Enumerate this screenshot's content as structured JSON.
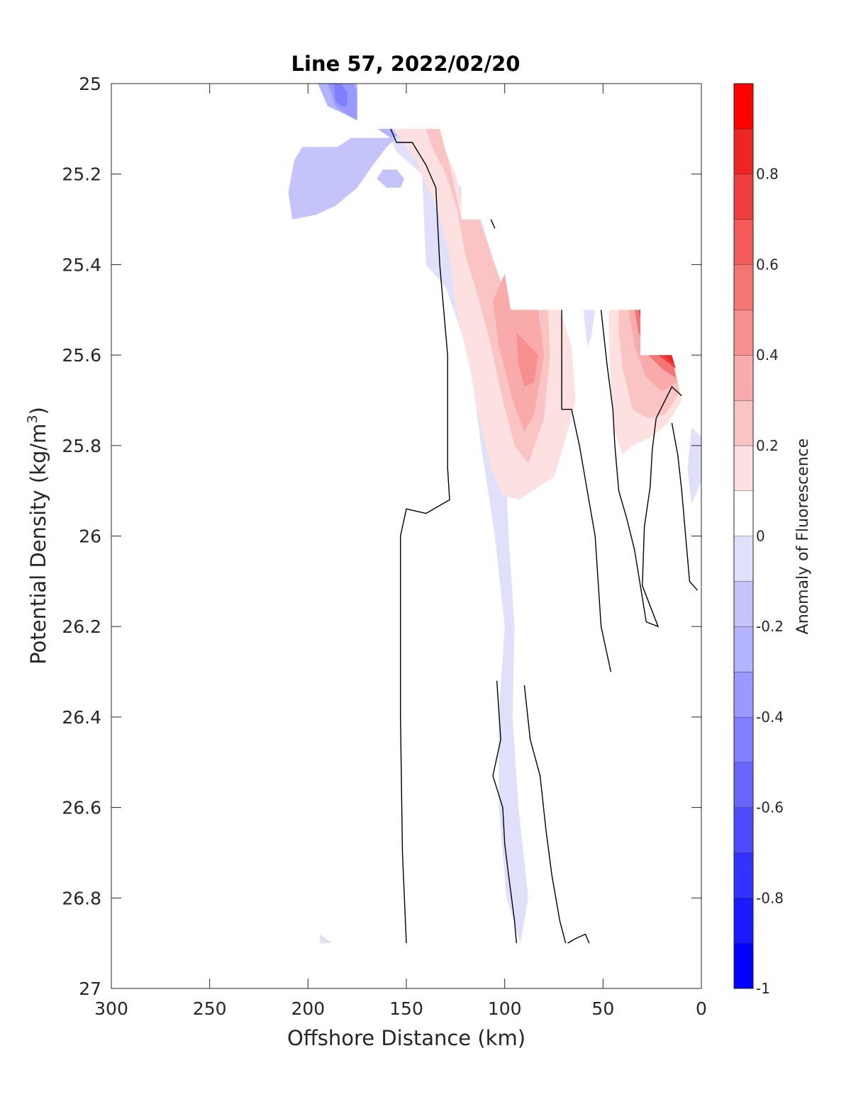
{
  "chart_data": {
    "type": "contour",
    "title": "Line 57, 2022/02/20",
    "xlabel": "Offshore Distance (km)",
    "ylabel": "Potential Density (kg/m",
    "ylabel_sup": "3",
    "ylabel_end": ")",
    "xlim": [
      300,
      0
    ],
    "x_reversed": true,
    "ylim": [
      25,
      27
    ],
    "y_reversed": true,
    "xticks": [
      "300",
      "250",
      "200",
      "150",
      "100",
      "50",
      "0"
    ],
    "yticks": [
      "25",
      "25.2",
      "25.4",
      "25.6",
      "25.8",
      "26",
      "26.2",
      "26.4",
      "26.6",
      "26.8",
      "27"
    ],
    "colorbar": {
      "label": "Anomaly of Fluorescence",
      "limits": [
        -1,
        1
      ],
      "ticks": [
        "-1",
        "-0.8",
        "-0.6",
        "-0.4",
        "-0.2",
        "0",
        "0.2",
        "0.4",
        "0.6",
        "0.8"
      ],
      "levels": [
        -1,
        -0.9,
        -0.8,
        -0.7,
        -0.6,
        -0.5,
        -0.4,
        -0.3,
        -0.2,
        -0.1,
        0.1,
        0.2,
        0.3,
        0.4,
        0.5,
        0.6,
        0.7,
        0.8,
        0.9,
        1.0
      ],
      "colors": [
        "#0000ff",
        "#1a1aff",
        "#3333ff",
        "#4d4dff",
        "#6666ff",
        "#8080ff",
        "#9999ff",
        "#b3b3ff",
        "#c4c4fa",
        "#e0e0fb",
        "#ffffff",
        "#fde0e0",
        "#fbc4c4",
        "#f9aaaa",
        "#f78f8f",
        "#f57575",
        "#f35a5a",
        "#f13f3f",
        "#ef2424",
        "#ff0000"
      ]
    },
    "regions": [
      {
        "level": -0.1,
        "color": "#e0e0fb",
        "points": [
          [
            285,
            25.0
          ],
          [
            185,
            25.0
          ],
          [
            173,
            25.1
          ],
          [
            160,
            25.1
          ],
          [
            155,
            25.15
          ],
          [
            142,
            25.2
          ],
          [
            140,
            25.4
          ],
          [
            130,
            25.45
          ],
          [
            118,
            25.6
          ],
          [
            112,
            25.8
          ],
          [
            105,
            26.0
          ],
          [
            100,
            26.2
          ],
          [
            103,
            26.4
          ],
          [
            103,
            26.6
          ],
          [
            99,
            26.8
          ],
          [
            92,
            26.9
          ],
          [
            88,
            26.8
          ],
          [
            93,
            26.6
          ],
          [
            96,
            26.4
          ],
          [
            95,
            26.2
          ],
          [
            98,
            26.0
          ],
          [
            100,
            25.8
          ],
          [
            103,
            25.6
          ],
          [
            105,
            25.4
          ],
          [
            112,
            25.3
          ],
          [
            118,
            25.25
          ],
          [
            124,
            25.22
          ],
          [
            130,
            25.2
          ],
          [
            137,
            25.15
          ],
          [
            140,
            25.1
          ],
          [
            150,
            25.1
          ],
          [
            159,
            25.1
          ],
          [
            162,
            25.05
          ],
          [
            167,
            25.0
          ]
        ]
      },
      {
        "level": -0.2,
        "color": "#c4c4fa",
        "points": [
          [
            285,
            25.0
          ],
          [
            195,
            25.0
          ],
          [
            155,
            25.0
          ],
          [
            152,
            25.05
          ],
          [
            153,
            25.12
          ],
          [
            160,
            25.12
          ],
          [
            178,
            25.12
          ],
          [
            185,
            25.14
          ],
          [
            203,
            25.14
          ],
          [
            207,
            25.17
          ],
          [
            210,
            25.24
          ],
          [
            208,
            25.3
          ],
          [
            196,
            25.29
          ],
          [
            186,
            25.27
          ],
          [
            175,
            25.23
          ],
          [
            167,
            25.18
          ],
          [
            160,
            25.14
          ],
          [
            150,
            25.1
          ],
          [
            145,
            25.05
          ],
          [
            140,
            25.02
          ],
          [
            130,
            25.0
          ]
        ]
      },
      {
        "level": -0.3,
        "color": "#b3b3ff",
        "points": [
          [
            230,
            25.0
          ],
          [
            195,
            25.0
          ],
          [
            190,
            25.05
          ],
          [
            180,
            25.07
          ],
          [
            168,
            25.09
          ],
          [
            158,
            25.12
          ],
          [
            150,
            25.11
          ],
          [
            145,
            25.07
          ],
          [
            142,
            25.05
          ],
          [
            143,
            25.0
          ]
        ]
      },
      {
        "level": -0.4,
        "color": "#9999ff",
        "points": [
          [
            205,
            25.0
          ],
          [
            190,
            25.0
          ],
          [
            186,
            25.05
          ],
          [
            180,
            25.07
          ],
          [
            171,
            25.09
          ],
          [
            165,
            25.08
          ],
          [
            167,
            25.04
          ],
          [
            173,
            25.03
          ],
          [
            177,
            25.0
          ]
        ]
      },
      {
        "level": -0.5,
        "color": "#8080ff",
        "points": [
          [
            195,
            25.0
          ],
          [
            187,
            25.0
          ],
          [
            186,
            25.04
          ],
          [
            183,
            25.05
          ],
          [
            180,
            25.05
          ],
          [
            180,
            25.02
          ],
          [
            183,
            25.0
          ]
        ]
      }
    ],
    "negative_spots": [
      {
        "level": -0.2,
        "color": "#c4c4fa",
        "points": [
          [
            162,
            25.19
          ],
          [
            155,
            25.19
          ],
          [
            151,
            25.21
          ],
          [
            153,
            25.23
          ],
          [
            160,
            25.23
          ],
          [
            165,
            25.21
          ]
        ]
      },
      {
        "level": -0.1,
        "color": "#e0e0fb",
        "points": [
          [
            60,
            25.5
          ],
          [
            54,
            25.5
          ],
          [
            56,
            25.56
          ],
          [
            58,
            25.58
          ]
        ]
      },
      {
        "level": -0.1,
        "color": "#e0e0fb",
        "points": [
          [
            5,
            25.76
          ],
          [
            0,
            25.78
          ],
          [
            0,
            25.88
          ],
          [
            5,
            25.93
          ],
          [
            7,
            25.85
          ]
        ]
      },
      {
        "level": -0.1,
        "color": "#e0e0fb",
        "points": [
          [
            194,
            26.88
          ],
          [
            188,
            26.9
          ],
          [
            194,
            26.9
          ]
        ]
      }
    ],
    "positive_regions": [
      {
        "level": 0.1,
        "color": "#fde0e0",
        "points": [
          [
            157,
            25.1
          ],
          [
            135,
            25.1
          ],
          [
            125,
            25.2
          ],
          [
            120,
            25.3
          ],
          [
            113,
            25.3
          ],
          [
            106,
            25.4
          ],
          [
            97,
            25.5
          ],
          [
            72,
            25.5
          ],
          [
            66,
            25.58
          ],
          [
            64,
            25.7
          ],
          [
            70,
            25.8
          ],
          [
            75,
            25.87
          ],
          [
            93,
            25.92
          ],
          [
            101,
            25.91
          ],
          [
            107,
            25.85
          ],
          [
            113,
            25.74
          ],
          [
            118,
            25.62
          ],
          [
            125,
            25.49
          ],
          [
            128,
            25.38
          ],
          [
            134,
            25.28
          ],
          [
            140,
            25.22
          ],
          [
            145,
            25.17
          ]
        ]
      },
      {
        "level": 0.1,
        "color": "#fde0e0",
        "points": [
          [
            47,
            25.5
          ],
          [
            32,
            25.5
          ],
          [
            15,
            25.6
          ],
          [
            10,
            25.7
          ],
          [
            17,
            25.75
          ],
          [
            25,
            25.78
          ],
          [
            35,
            25.8
          ],
          [
            40,
            25.82
          ],
          [
            44,
            25.77
          ],
          [
            46,
            25.67
          ],
          [
            47,
            25.58
          ]
        ]
      },
      {
        "level": 0.2,
        "color": "#fbc4c4",
        "points": [
          [
            140,
            25.1
          ],
          [
            133,
            25.1
          ],
          [
            128,
            25.18
          ],
          [
            122,
            25.3
          ],
          [
            113,
            25.3
          ],
          [
            97,
            25.5
          ],
          [
            78,
            25.5
          ],
          [
            77,
            25.6
          ],
          [
            80,
            25.74
          ],
          [
            88,
            25.84
          ],
          [
            95,
            25.8
          ],
          [
            101,
            25.7
          ],
          [
            108,
            25.56
          ],
          [
            115,
            25.45
          ],
          [
            120,
            25.38
          ],
          [
            124,
            25.28
          ],
          [
            130,
            25.2
          ],
          [
            137,
            25.14
          ]
        ]
      },
      {
        "level": 0.2,
        "color": "#fbc4c4",
        "points": [
          [
            42,
            25.5
          ],
          [
            32,
            25.5
          ],
          [
            15,
            25.6
          ],
          [
            11,
            25.68
          ],
          [
            18,
            25.73
          ],
          [
            27,
            25.74
          ],
          [
            35,
            25.72
          ],
          [
            40,
            25.63
          ],
          [
            42,
            25.55
          ]
        ]
      },
      {
        "level": 0.3,
        "color": "#f9aaaa",
        "points": [
          [
            100,
            25.42
          ],
          [
            97,
            25.5
          ],
          [
            83,
            25.5
          ],
          [
            80,
            25.6
          ],
          [
            85,
            25.73
          ],
          [
            90,
            25.77
          ],
          [
            96,
            25.7
          ],
          [
            103,
            25.58
          ],
          [
            106,
            25.48
          ]
        ]
      },
      {
        "level": 0.3,
        "color": "#f9aaaa",
        "points": [
          [
            37,
            25.5
          ],
          [
            32,
            25.5
          ],
          [
            15,
            25.6
          ],
          [
            12,
            25.66
          ],
          [
            20,
            25.68
          ],
          [
            28,
            25.65
          ],
          [
            34,
            25.58
          ]
        ]
      },
      {
        "level": 0.4,
        "color": "#f78f8f",
        "points": [
          [
            94,
            25.55
          ],
          [
            83,
            25.6
          ],
          [
            85,
            25.66
          ],
          [
            90,
            25.67
          ],
          [
            93,
            25.62
          ]
        ]
      },
      {
        "level": 0.5,
        "color": "#f57575",
        "points": [
          [
            34,
            25.5
          ],
          [
            30,
            25.5
          ],
          [
            15,
            25.6
          ],
          [
            13,
            25.65
          ],
          [
            20,
            25.63
          ],
          [
            27,
            25.6
          ],
          [
            32,
            25.55
          ]
        ]
      },
      {
        "level": 0.7,
        "color": "#f13f3f",
        "points": [
          [
            32,
            25.5
          ],
          [
            30,
            25.5
          ],
          [
            15,
            25.6
          ],
          [
            13,
            25.63
          ],
          [
            22,
            25.6
          ],
          [
            29,
            25.55
          ]
        ]
      },
      {
        "level": 0.9,
        "color": "#ef2424",
        "points": [
          [
            31,
            25.5
          ],
          [
            30,
            25.5
          ],
          [
            15,
            25.6
          ],
          [
            14,
            25.62
          ],
          [
            24,
            25.58
          ]
        ]
      }
    ],
    "nodata_mask": [
      [
        175,
        25.0
      ],
      [
        300,
        25.0
      ],
      [
        300,
        25.0
      ],
      [
        0,
        25.0
      ],
      [
        0,
        25.5
      ],
      [
        13,
        25.5
      ],
      [
        13,
        25.6
      ],
      [
        31,
        25.6
      ],
      [
        31,
        25.5
      ],
      [
        96,
        25.5
      ],
      [
        96,
        25.3
      ],
      [
        122,
        25.3
      ],
      [
        122,
        25.15
      ],
      [
        130,
        25.15
      ],
      [
        130,
        25.1
      ],
      [
        175,
        25.1
      ]
    ],
    "zero_contours": [
      [
        [
          158,
          25.1
        ],
        [
          155,
          25.13
        ],
        [
          147,
          25.13
        ],
        [
          140,
          25.18
        ],
        [
          135,
          25.23
        ],
        [
          133,
          25.4
        ],
        [
          129,
          25.6
        ],
        [
          129,
          25.85
        ],
        [
          128,
          25.92
        ],
        [
          140,
          25.95
        ],
        [
          150,
          25.94
        ],
        [
          153,
          26.0
        ],
        [
          153,
          26.4
        ],
        [
          152,
          26.7
        ],
        [
          150,
          26.9
        ]
      ],
      [
        [
          71,
          25.5
        ],
        [
          71,
          25.72
        ],
        [
          66,
          25.72
        ],
        [
          62,
          25.8
        ],
        [
          58,
          25.9
        ],
        [
          54,
          26.0
        ],
        [
          51,
          26.2
        ],
        [
          46,
          26.3
        ]
      ],
      [
        [
          51,
          25.5
        ],
        [
          48,
          25.62
        ],
        [
          45,
          25.72
        ],
        [
          44,
          25.8
        ],
        [
          42,
          25.9
        ],
        [
          38,
          25.96
        ],
        [
          34,
          26.03
        ],
        [
          28,
          26.19
        ],
        [
          22,
          26.2
        ],
        [
          30,
          26.11
        ],
        [
          29,
          25.98
        ],
        [
          26,
          25.89
        ],
        [
          25,
          25.81
        ],
        [
          23,
          25.74
        ],
        [
          15,
          25.67
        ],
        [
          10,
          25.69
        ]
      ],
      [
        [
          15,
          25.75
        ],
        [
          12,
          25.82
        ],
        [
          10,
          25.9
        ],
        [
          8,
          26.0
        ],
        [
          6,
          26.1
        ],
        [
          2,
          26.12
        ]
      ],
      [
        [
          104,
          26.32
        ],
        [
          102,
          26.45
        ],
        [
          106,
          26.53
        ],
        [
          101,
          26.6
        ],
        [
          100,
          26.68
        ],
        [
          98,
          26.75
        ],
        [
          95,
          26.85
        ],
        [
          94,
          26.9
        ]
      ],
      [
        [
          90,
          26.33
        ],
        [
          87,
          26.45
        ],
        [
          82,
          26.53
        ],
        [
          79,
          26.65
        ],
        [
          76,
          26.75
        ],
        [
          72,
          26.85
        ],
        [
          69,
          26.9
        ]
      ],
      [
        [
          68,
          26.9
        ],
        [
          64,
          26.89
        ],
        [
          59,
          26.88
        ],
        [
          57,
          26.9
        ]
      ],
      [
        [
          107,
          25.3
        ],
        [
          105,
          25.32
        ]
      ]
    ]
  }
}
